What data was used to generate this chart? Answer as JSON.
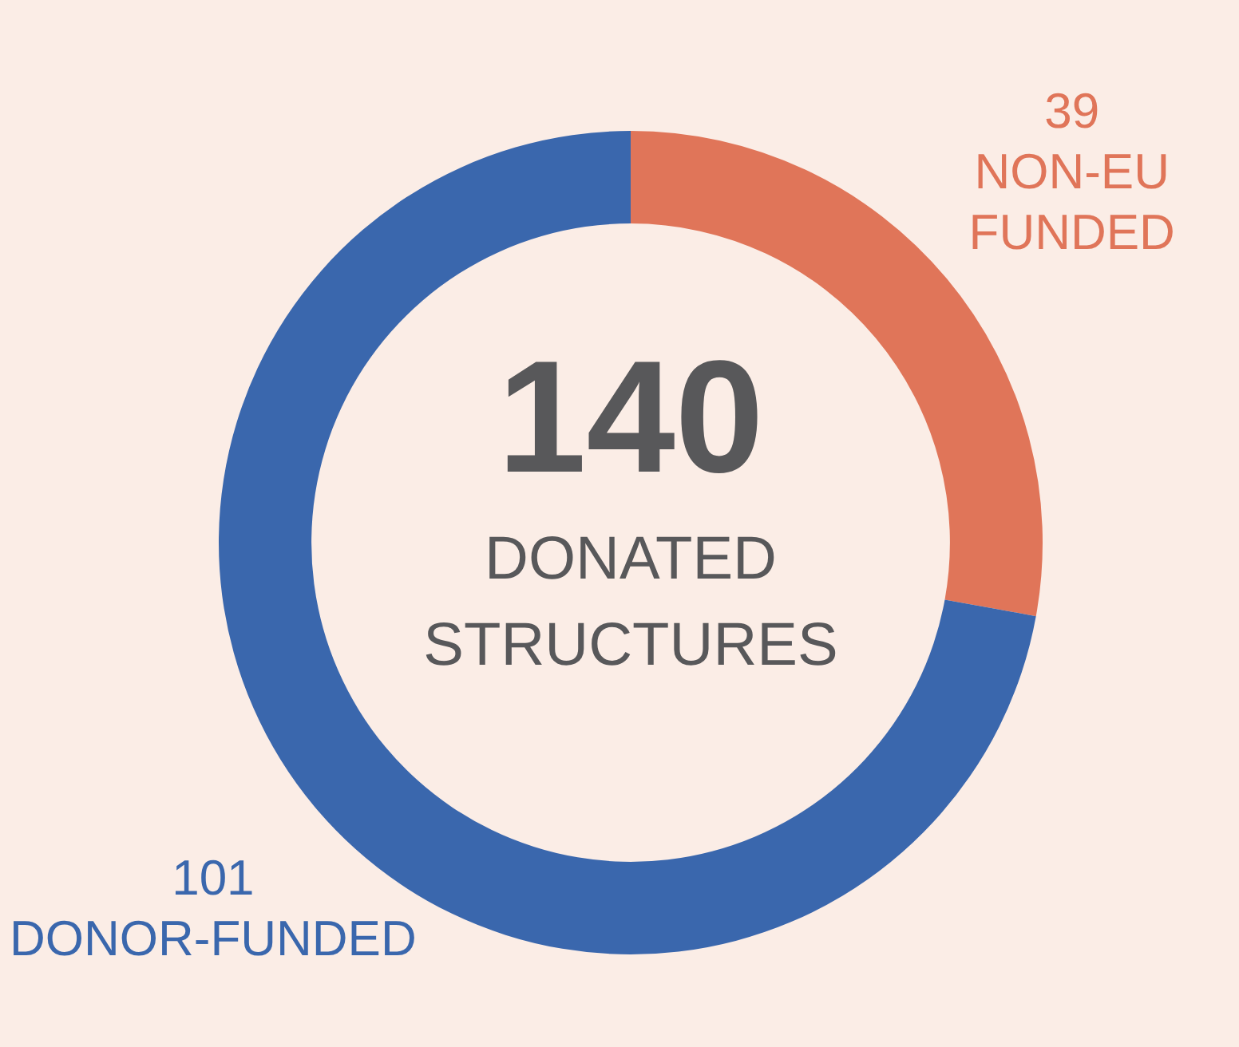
{
  "chart_data": {
    "type": "donut",
    "categories": [
      "NON-EU FUNDED",
      "DONOR-FUNDED"
    ],
    "values": [
      39,
      101
    ],
    "colors": [
      "#e07559",
      "#3a67ad"
    ],
    "data_labels": true,
    "legend": false,
    "annotations": [
      "140",
      "DONATED STRUCTURES"
    ]
  }
}
